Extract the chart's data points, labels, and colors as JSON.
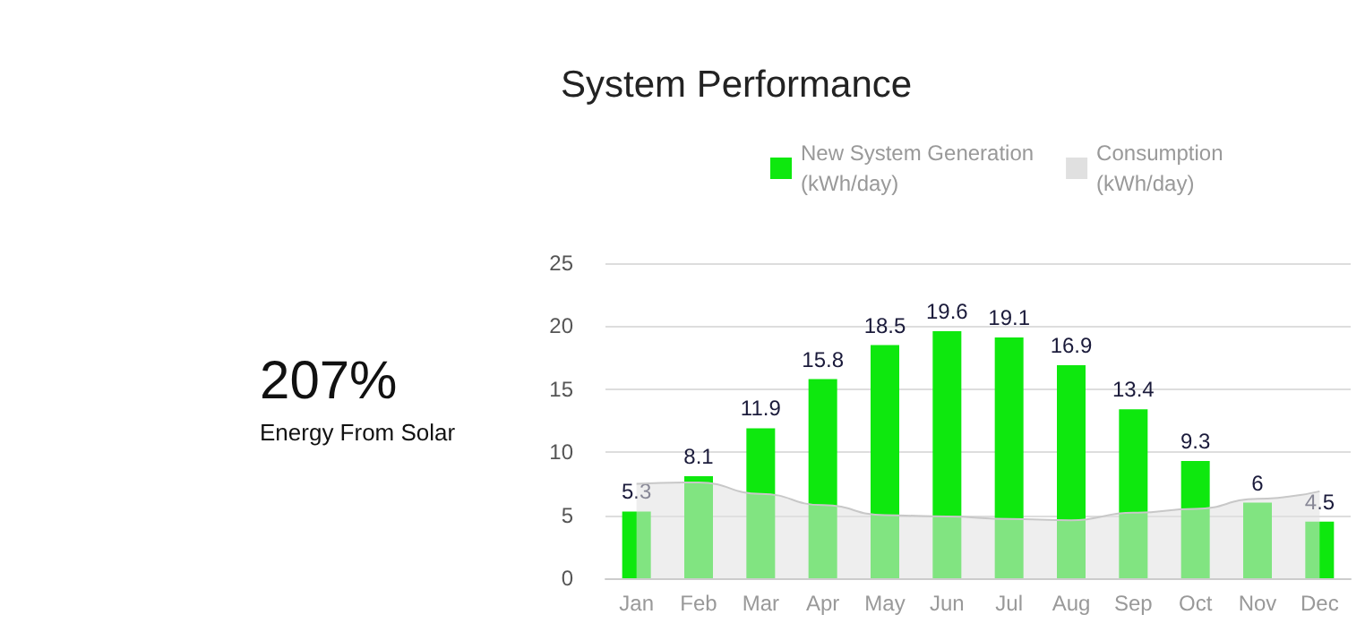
{
  "chart_data": {
    "type": "bar",
    "title": "System Performance",
    "categories": [
      "Jan",
      "Feb",
      "Mar",
      "Apr",
      "May",
      "Jun",
      "Jul",
      "Aug",
      "Sep",
      "Oct",
      "Nov",
      "Dec"
    ],
    "series": [
      {
        "name": "New System Generation\n(kWh/day)",
        "color": "#0ee80e",
        "values": [
          5.3,
          8.1,
          11.9,
          15.8,
          18.5,
          19.6,
          19.1,
          16.9,
          13.4,
          9.3,
          6,
          4.5
        ],
        "value_labels": [
          "5.3",
          "8.1",
          "11.9",
          "15.8",
          "18.5",
          "19.6",
          "19.1",
          "16.9",
          "13.4",
          "9.3",
          "6",
          "4.5"
        ]
      },
      {
        "name": "Consumption\n(kWh/day)",
        "type": "area",
        "color": "#e0e0e0",
        "values": [
          7.5,
          7.6,
          6.7,
          5.8,
          5.0,
          4.9,
          4.7,
          4.6,
          5.2,
          5.5,
          6.3,
          6.9
        ]
      }
    ],
    "ylim": [
      0,
      25
    ],
    "yticks": [
      0,
      5,
      10,
      15,
      20,
      25
    ],
    "grid": "y",
    "legend": "top",
    "annotations": [
      "207%",
      "Energy From Solar"
    ]
  }
}
